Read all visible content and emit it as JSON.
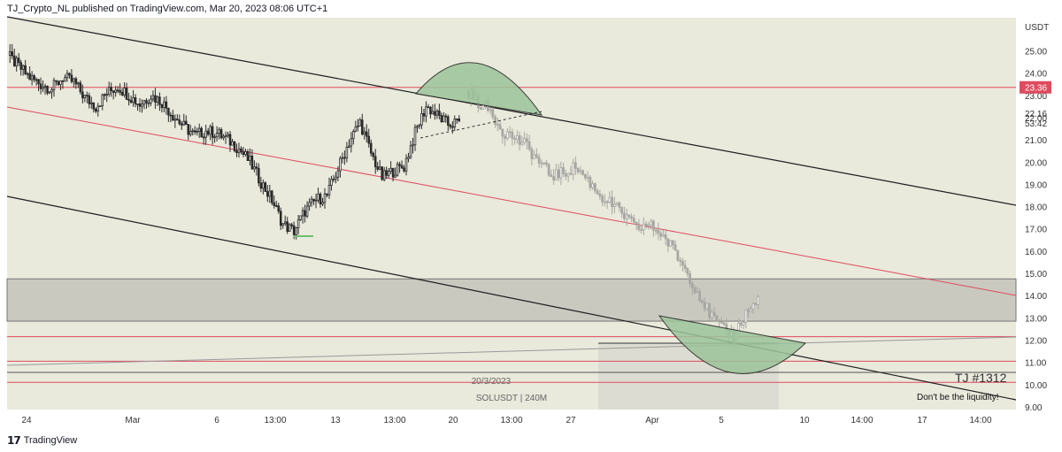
{
  "header": {
    "text": "TJ_Crypto_NL published on TradingView.com, Mar 20, 2023 08:06 UTC+1"
  },
  "footer": {
    "logo_text": "TradingView",
    "logo_icon": "tradingview-logo-icon"
  },
  "colors": {
    "background": "#e9e9dc",
    "up": "#2b2b2b",
    "down": "#2b2b2b",
    "projection": "#a7a7a2",
    "red_line": "#e04a5f",
    "price_tag": "#e04a5f",
    "zone": "#c9c9c0",
    "arc_fill": "#9cc49a",
    "channel": "#1e1e1e"
  },
  "chart_data": {
    "type": "candlestick",
    "symbol": "SOLUSDT | 240M",
    "interval": "240M",
    "date_label": "20/3/2023",
    "price_axis_unit": "USDT",
    "yticks": [
      25,
      24,
      23,
      22,
      21,
      20,
      19,
      18,
      17,
      16,
      15,
      14,
      13,
      12,
      11,
      10,
      9
    ],
    "ytick_labels": [
      "25.00",
      "24.00",
      "23.00",
      "22.00",
      "21.00",
      "20.00",
      "19.00",
      "18.00",
      "17.00",
      "16.00",
      "15.00",
      "14.00",
      "13.00",
      "12.00",
      "11.00",
      "10.00",
      "9.00"
    ],
    "ylim": [
      8.8,
      26.6
    ],
    "xticks": [
      "24",
      "Mar",
      "6",
      "13:00",
      "13",
      "13:00",
      "20",
      "13:00",
      "27",
      "Apr",
      "5",
      "10",
      "14:00",
      "17",
      "14:00"
    ],
    "current_price": "23.36",
    "last_close": "22.16",
    "countdown": "53:42",
    "horizontal_levels": [
      23.36,
      12.15,
      11.05,
      10.1
    ],
    "support_zone": [
      12.85,
      14.75
    ],
    "actual_ohlc_path": [
      24.8,
      24.3,
      23.8,
      23.5,
      23.3,
      23.8,
      23.6,
      22.9,
      22.5,
      23.1,
      23.4,
      23.0,
      22.6,
      23.0,
      22.7,
      22.1,
      21.6,
      21.2,
      21.4,
      21.3,
      21.0,
      20.6,
      20.0,
      19.1,
      18.3,
      17.2,
      16.9,
      17.8,
      18.3,
      18.5,
      19.7,
      20.9,
      21.8,
      20.4,
      19.3,
      19.6,
      19.8,
      21.3,
      22.5,
      22.1,
      21.7,
      21.8
    ],
    "projected_path": [
      23.2,
      22.7,
      22.3,
      21.4,
      21.1,
      20.7,
      20.0,
      19.4,
      19.5,
      19.8,
      19.2,
      18.5,
      18.1,
      17.6,
      17.0,
      17.2,
      16.8,
      16.1,
      15.2,
      14.2,
      13.2,
      12.5,
      12.2,
      13.2,
      13.8
    ],
    "annotations": {
      "tag": "TJ #1312",
      "caption": "Don't be the liquidity!"
    }
  }
}
